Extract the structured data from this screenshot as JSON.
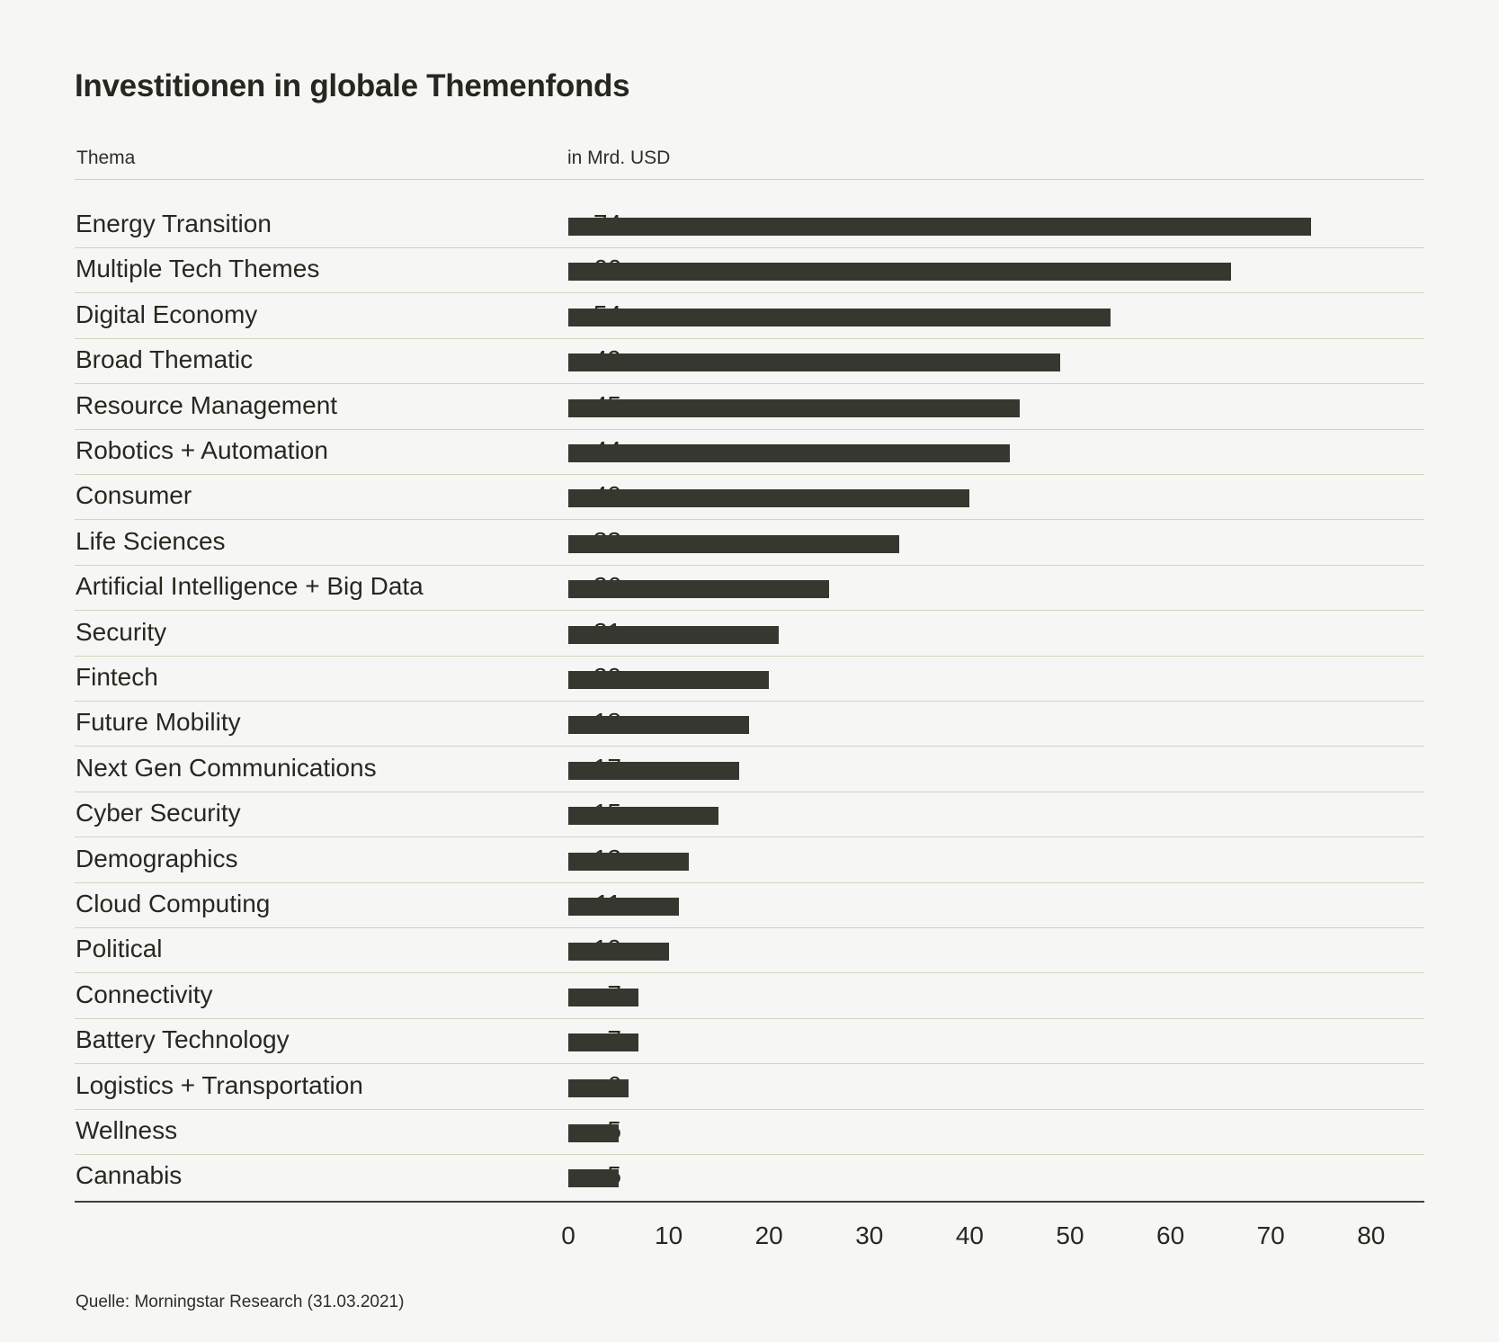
{
  "header": {
    "title": "Investitionen in globale Themenfonds",
    "column_thema": "Thema",
    "column_unit": "in Mrd. USD"
  },
  "source": "Quelle: Morningstar Research (31.03.2021)",
  "chart_data": {
    "type": "bar",
    "orientation": "horizontal",
    "title": "Investitionen in globale Themenfonds",
    "xlabel": "in Mrd. USD",
    "ylabel": "Thema",
    "xlim": [
      0,
      80
    ],
    "xticks": [
      0,
      10,
      20,
      30,
      40,
      50,
      60,
      70,
      80
    ],
    "grid": false,
    "categories": [
      "Energy Transition",
      "Multiple Tech Themes",
      "Digital Economy",
      "Broad Thematic",
      "Resource Management",
      "Robotics + Automation",
      "Consumer",
      "Life Sciences",
      "Artificial Intelligence + Big Data",
      "Security",
      "Fintech",
      "Future Mobility",
      "Next Gen Communications",
      "Cyber Security",
      "Demographics",
      "Cloud Computing",
      "Political",
      "Connectivity",
      "Battery Technology",
      "Logistics + Transportation",
      "Wellness",
      "Cannabis"
    ],
    "values": [
      74,
      66,
      54,
      49,
      45,
      44,
      40,
      33,
      26,
      21,
      20,
      18,
      17,
      15,
      12,
      11,
      10,
      7,
      7,
      6,
      5,
      5
    ],
    "bar_color": "#363830"
  }
}
